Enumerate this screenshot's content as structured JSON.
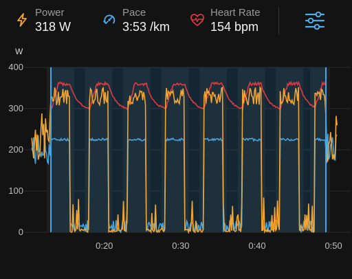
{
  "metrics": {
    "power": {
      "label": "Power",
      "value": "318 W",
      "icon": "lightning-bolt-icon",
      "color": "#f2a531"
    },
    "pace": {
      "label": "Pace",
      "value": "3:53 /km",
      "icon": "running-speed-icon",
      "color": "#4db0ea"
    },
    "heart_rate": {
      "label": "Heart Rate",
      "value": "154 bpm",
      "icon": "heart-rate-icon",
      "color": "#e03a44"
    }
  },
  "settings_icon": "settings-sliders-icon",
  "chart_data": {
    "type": "line",
    "ylabel": "W",
    "ylim": [
      0,
      400
    ],
    "yticks": [
      "0",
      "100",
      "200",
      "300",
      "400"
    ],
    "xlim": [
      "0:10",
      "0:51"
    ],
    "xticks": [
      "0:20",
      "0:30",
      "0:40",
      "0:50"
    ],
    "grid": true,
    "colors": {
      "power": "#f2a531",
      "pace": "#4db0ea",
      "heart_rate": "#e03a44",
      "selection": "#1f6fa8"
    },
    "selection": [
      "0:13",
      "0:49"
    ],
    "intervals": [
      {
        "start": "0:13",
        "end": "0:15.5"
      },
      {
        "start": "0:18",
        "end": "0:20.5"
      },
      {
        "start": "0:23",
        "end": "0:25.5"
      },
      {
        "start": "0:28",
        "end": "0:30.5"
      },
      {
        "start": "0:33",
        "end": "0:35.5"
      },
      {
        "start": "0:38",
        "end": "0:40.5"
      },
      {
        "start": "0:43",
        "end": "0:45.5"
      },
      {
        "start": "0:47.5",
        "end": "0:49"
      }
    ],
    "series": [
      {
        "name": "Power",
        "on_interval": 330,
        "recovery": 0
      },
      {
        "name": "Pace",
        "on_interval": 225,
        "recovery": 0
      },
      {
        "name": "Heart Rate",
        "on_interval_peak": 360,
        "recovery_low": 295
      }
    ]
  }
}
